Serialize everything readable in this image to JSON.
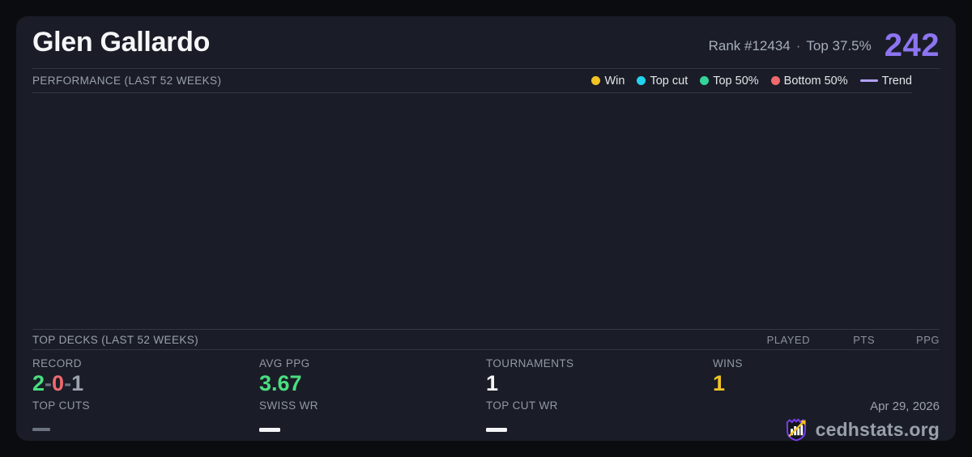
{
  "header": {
    "player_name": "Glen Gallardo",
    "rank_text": "Rank #12434",
    "separator": "·",
    "percentile_text": "Top 37.5%",
    "score": "242"
  },
  "performance": {
    "section_title": "PERFORMANCE (LAST 52 WEEKS)",
    "legend": [
      {
        "label": "Win",
        "type": "dot",
        "color": "#f2c325"
      },
      {
        "label": "Top cut",
        "type": "dot",
        "color": "#22d3ee"
      },
      {
        "label": "Top 50%",
        "type": "dot",
        "color": "#34d399"
      },
      {
        "label": "Bottom 50%",
        "type": "dot",
        "color": "#f0696e"
      },
      {
        "label": "Trend",
        "type": "line",
        "color": "#b2a1f7"
      }
    ],
    "chart_data": {
      "type": "scatter",
      "title": "PERFORMANCE (LAST 52 WEEKS)",
      "points": [],
      "series": []
    }
  },
  "top_decks": {
    "section_title": "TOP DECKS (LAST 52 WEEKS)",
    "columns": [
      "PLAYED",
      "PTS",
      "PPG"
    ],
    "rows": []
  },
  "stats": {
    "record": {
      "label": "RECORD",
      "parts": [
        {
          "text": "2",
          "color": "#4ade80"
        },
        {
          "text": "-",
          "color": "#6b7280"
        },
        {
          "text": "0",
          "color": "#f0696e"
        },
        {
          "text": "-",
          "color": "#6b7280"
        },
        {
          "text": "1",
          "color": "#9ca3af"
        }
      ]
    },
    "avg_ppg": {
      "label": "AVG PPG",
      "value": "3.67",
      "color": "#4ade80"
    },
    "tournaments": {
      "label": "TOURNAMENTS",
      "value": "1",
      "color": "#f3f4f6"
    },
    "wins": {
      "label": "WINS",
      "value": "1",
      "color": "#f2c325"
    },
    "top_cuts": {
      "label": "TOP CUTS",
      "dash_color": "#6b7280"
    },
    "swiss_wr": {
      "label": "SWISS WR",
      "dash_color": "#f3f4f6"
    },
    "top_cut_wr": {
      "label": "TOP CUT WR",
      "dash_color": "#f3f4f6"
    }
  },
  "footer": {
    "date": "Apr 29, 2026",
    "brand": "cedhstats.org"
  },
  "colors": {
    "accent_purple": "#8d75f2",
    "card_bg": "#1a1d27",
    "page_bg": "#0b0c10",
    "divider": "#313747",
    "logo_purple": "#7a3ff2",
    "logo_gold": "#f2c325"
  }
}
